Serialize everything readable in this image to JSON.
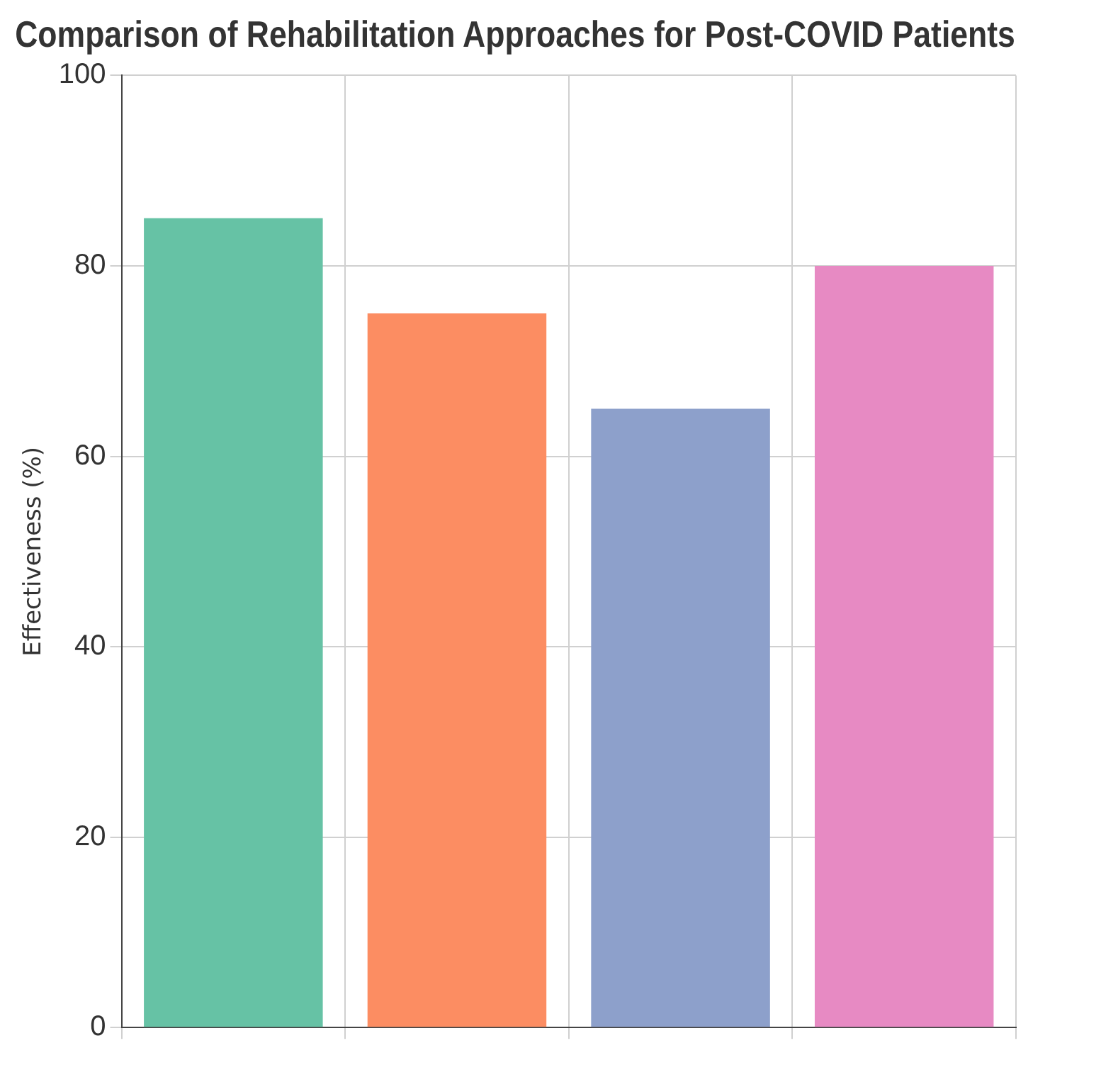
{
  "chart_data": {
    "type": "bar",
    "title": "Comparison of Rehabilitation Approaches for Post-COVID Patients",
    "ylabel": "Effectiveness (%)",
    "categories": [
      null,
      null,
      null,
      null
    ],
    "values": [
      85,
      75,
      65,
      80
    ],
    "colors": [
      "#66c2a5",
      "#fc8d62",
      "#8da0cb",
      "#e78ac3"
    ],
    "ylim": [
      0,
      100
    ],
    "yticks": [
      0,
      20,
      40,
      60,
      80,
      100
    ],
    "grid": true,
    "legend": false
  }
}
